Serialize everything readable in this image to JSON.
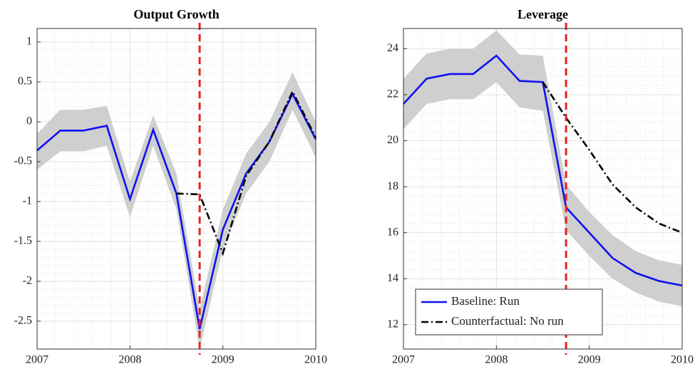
{
  "chart_data": [
    {
      "type": "line",
      "title": "Output Growth",
      "x": [
        2007,
        2007.25,
        2007.5,
        2007.75,
        2008,
        2008.25,
        2008.5,
        2008.75,
        2009,
        2009.25,
        2009.5,
        2009.75,
        2010
      ],
      "xlim": [
        2007,
        2010
      ],
      "xticks": [
        2007,
        2008,
        2009,
        2010
      ],
      "ylim": [
        -2.85,
        1.17
      ],
      "yticks": [
        1,
        0.5,
        0,
        -0.5,
        -1,
        -1.5,
        -2,
        -2.5
      ],
      "grid": true,
      "minor_grid": true,
      "vline": 2008.75,
      "vline_color": "#e8201e",
      "band": {
        "color": "#cfcfcf",
        "upper": [
          -0.15,
          0.15,
          0.15,
          0.2,
          -0.75,
          0.08,
          -0.65,
          -2.35,
          -1.1,
          -0.4,
          0.0,
          0.62,
          0.0
        ],
        "lower": [
          -0.6,
          -0.37,
          -0.37,
          -0.3,
          -1.2,
          -0.3,
          -1.1,
          -2.85,
          -1.6,
          -0.9,
          -0.5,
          0.15,
          -0.45
        ]
      },
      "series": [
        {
          "color": "#1010f0",
          "dash": "solid",
          "values": [
            -0.36,
            -0.11,
            -0.11,
            -0.05,
            -0.97,
            -0.1,
            -0.9,
            -2.6,
            -1.35,
            -0.65,
            -0.25,
            0.35,
            -0.22
          ]
        },
        {
          "color": "#000000",
          "dash": "dashdot",
          "values": [
            null,
            null,
            null,
            null,
            null,
            null,
            -0.9,
            -0.91,
            -1.65,
            -0.68,
            -0.25,
            0.38,
            -0.2
          ]
        }
      ]
    },
    {
      "type": "line",
      "title": "Leverage",
      "x": [
        2007,
        2007.25,
        2007.5,
        2007.75,
        2008,
        2008.25,
        2008.5,
        2008.75,
        2009,
        2009.25,
        2009.5,
        2009.75,
        2010
      ],
      "xlim": [
        2007,
        2010
      ],
      "xticks": [
        2007,
        2008,
        2009,
        2010
      ],
      "ylim": [
        10.94,
        24.88
      ],
      "yticks": [
        24,
        22,
        20,
        18,
        16,
        14,
        12
      ],
      "grid": true,
      "minor_grid": true,
      "vline": 2008.75,
      "vline_color": "#e8201e",
      "legend": "lower left",
      "band": {
        "color": "#cfcfcf",
        "upper": [
          22.7,
          23.8,
          24.0,
          24.0,
          24.8,
          23.75,
          23.7,
          18.1,
          16.9,
          15.9,
          15.2,
          14.8,
          14.6
        ],
        "lower": [
          20.5,
          21.6,
          21.8,
          21.8,
          22.55,
          21.45,
          21.3,
          16.1,
          15.0,
          14.0,
          13.4,
          13.0,
          12.8
        ]
      },
      "series": [
        {
          "name": "Baseline: Run",
          "color": "#1010f0",
          "dash": "solid",
          "values": [
            21.6,
            22.7,
            22.9,
            22.9,
            23.7,
            22.6,
            22.55,
            17.1,
            16.0,
            14.9,
            14.25,
            13.9,
            13.7
          ]
        },
        {
          "name": "Counterfactual: No run",
          "color": "#000000",
          "dash": "dashdot",
          "values": [
            null,
            null,
            null,
            null,
            null,
            null,
            22.55,
            21.0,
            19.6,
            18.1,
            17.1,
            16.4,
            16.0
          ]
        }
      ]
    }
  ]
}
